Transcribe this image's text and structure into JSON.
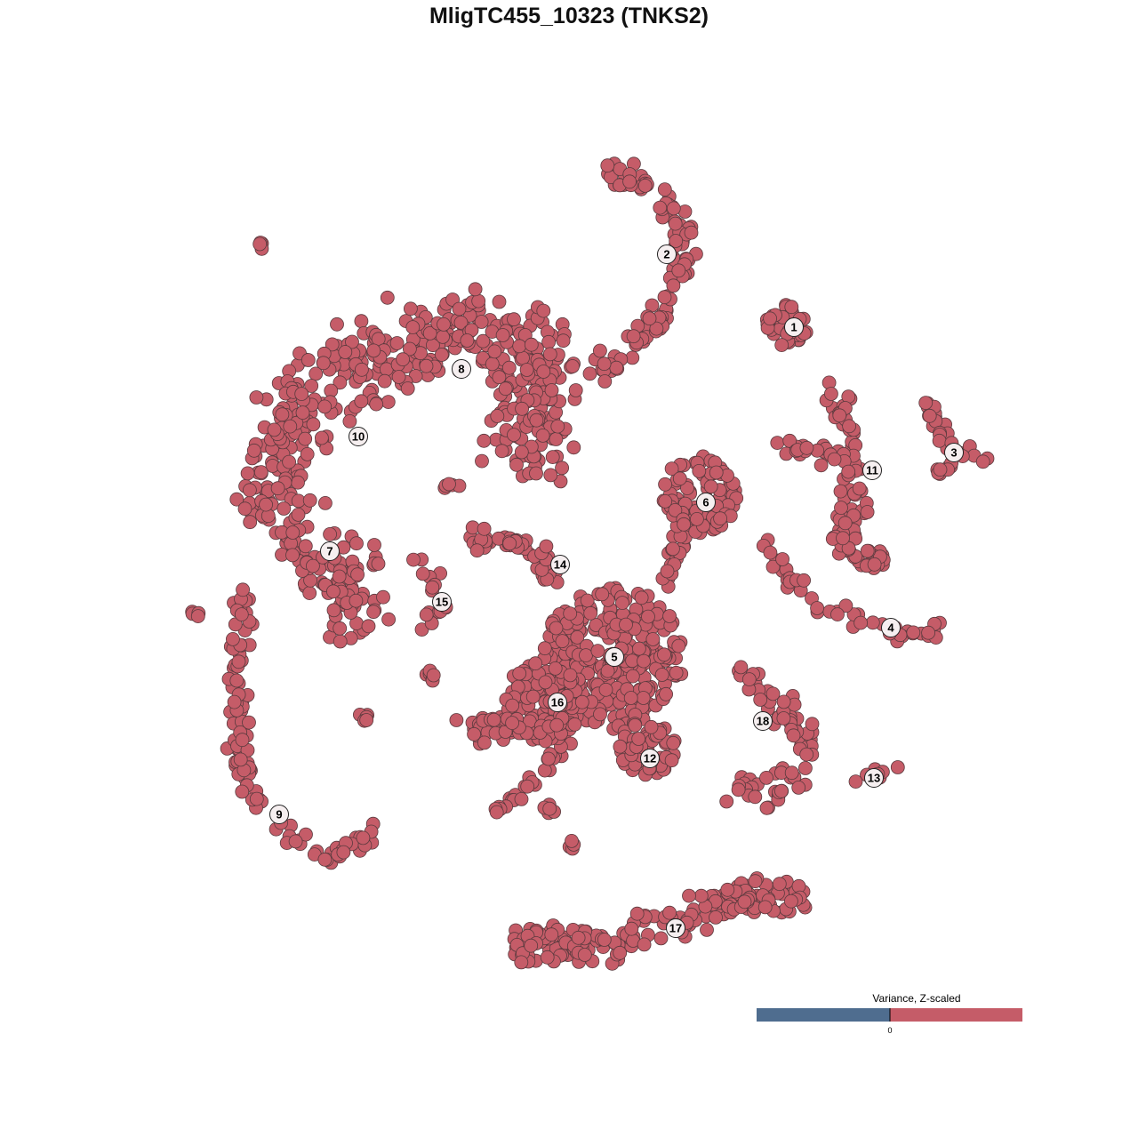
{
  "chart_data": {
    "type": "scatter",
    "title": "MligTC455_10323 (TNKS2)",
    "xlabel": "",
    "ylabel": "",
    "grid": false,
    "axes_visible": false,
    "point_color": "#c55c68",
    "point_stroke": "#5a3a3e",
    "cluster_labels": [
      "1",
      "2",
      "3",
      "4",
      "5",
      "6",
      "7",
      "8",
      "9",
      "10",
      "11",
      "12",
      "13",
      "14",
      "15",
      "16",
      "17",
      "18"
    ],
    "legend": {
      "title": "Variance, Z-scaled",
      "tick_label": "0",
      "low_color": "#4f6d8f",
      "high_color": "#c55c68",
      "placement": "bottom-right"
    }
  }
}
